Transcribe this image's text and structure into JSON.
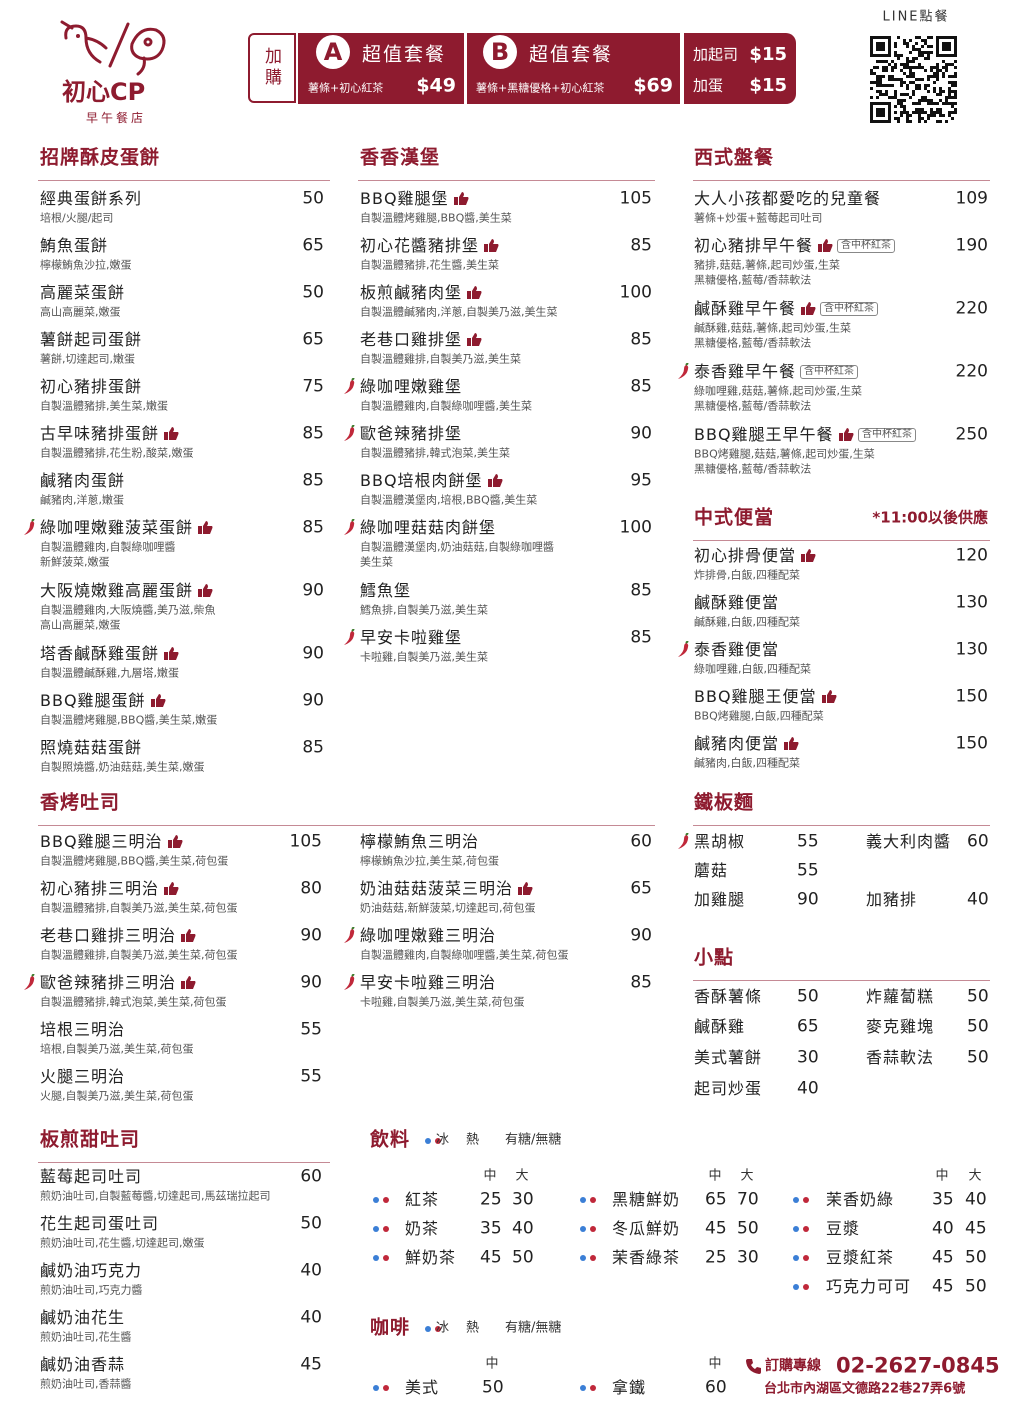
{
  "header": {
    "logo": {
      "name": "初心CP",
      "subtitle": "早午餐店"
    },
    "addon_label": "加購",
    "sets": [
      {
        "letter": "A",
        "title": "超值套餐",
        "contents": "薯條+初心紅茶",
        "price": "$49"
      },
      {
        "letter": "B",
        "title": "超值套餐",
        "contents": "薯條+黑糖優格+初心紅茶",
        "price": "$69"
      }
    ],
    "extras": [
      {
        "name": "加起司",
        "price": "$15"
      },
      {
        "name": "加蛋",
        "price": "$15"
      }
    ],
    "line_order": "LINE點餐"
  },
  "egg_crepes": {
    "title": "招牌酥皮蛋餅",
    "items": [
      {
        "name": "經典蛋餅系列",
        "desc": [
          "培根/火腿/起司"
        ],
        "price": 50
      },
      {
        "name": "鮪魚蛋餅",
        "desc": [
          "檸檬鮪魚沙拉,嫩蛋"
        ],
        "price": 65
      },
      {
        "name": "高麗菜蛋餅",
        "desc": [
          "高山高麗菜,嫩蛋"
        ],
        "price": 50
      },
      {
        "name": "薯餅起司蛋餅",
        "desc": [
          "薯餅,切達起司,嫩蛋"
        ],
        "price": 65
      },
      {
        "name": "初心豬排蛋餅",
        "desc": [
          "自製溫體豬排,美生菜,嫩蛋"
        ],
        "price": 75
      },
      {
        "name": "古早味豬排蛋餅",
        "desc": [
          "自製溫體豬排,花生粉,酸菜,嫩蛋"
        ],
        "price": 85,
        "like": true
      },
      {
        "name": "鹹豬肉蛋餅",
        "desc": [
          "鹹豬肉,洋蔥,嫩蛋"
        ],
        "price": 85
      },
      {
        "name": "綠咖哩嫩雞菠菜蛋餅",
        "desc": [
          "自製溫體雞肉,自製綠咖哩醬",
          "新鮮菠菜,嫩蛋"
        ],
        "price": 85,
        "spicy": true,
        "like": true
      },
      {
        "name": "大阪燒嫩雞高麗蛋餅",
        "desc": [
          "自製溫體雞肉,大阪燒醬,美乃滋,柴魚",
          "高山高麗菜,嫩蛋"
        ],
        "price": 90,
        "like": true
      },
      {
        "name": "塔香鹹酥雞蛋餅",
        "desc": [
          "自製溫體鹹酥雞,九層塔,嫩蛋"
        ],
        "price": 90,
        "like": true
      },
      {
        "name": "BBQ雞腿蛋餅",
        "desc": [
          "自製溫體烤雞腿,BBQ醬,美生菜,嫩蛋"
        ],
        "price": 90,
        "like": true
      },
      {
        "name": "照燒菇菇蛋餅",
        "desc": [
          "自製照燒醬,奶油菇菇,美生菜,嫩蛋"
        ],
        "price": 85
      }
    ]
  },
  "burgers": {
    "title": "香香漢堡",
    "items": [
      {
        "name": "BBQ雞腿堡",
        "desc": [
          "自製溫體烤雞腿,BBQ醬,美生菜"
        ],
        "price": 105,
        "like": true
      },
      {
        "name": "初心花醬豬排堡",
        "desc": [
          "自製溫體豬排,花生醬,美生菜"
        ],
        "price": 85,
        "like": true
      },
      {
        "name": "板煎鹹豬肉堡",
        "desc": [
          "自製溫體鹹豬肉,洋蔥,自製美乃滋,美生菜"
        ],
        "price": 100,
        "like": true
      },
      {
        "name": "老巷口雞排堡",
        "desc": [
          "自製溫體雞排,自製美乃滋,美生菜"
        ],
        "price": 85,
        "like": true
      },
      {
        "name": "綠咖哩嫩雞堡",
        "desc": [
          "自製溫體雞肉,自製綠咖哩醬,美生菜"
        ],
        "price": 85,
        "spicy": true
      },
      {
        "name": "歐爸辣豬排堡",
        "desc": [
          "自製溫體豬排,韓式泡菜,美生菜"
        ],
        "price": 90,
        "spicy": true
      },
      {
        "name": "BBQ培根肉餅堡",
        "desc": [
          "自製溫體漢堡肉,培根,BBQ醬,美生菜"
        ],
        "price": 95,
        "like": true
      },
      {
        "name": "綠咖哩菇菇肉餅堡",
        "desc": [
          "自製溫體漢堡肉,奶油菇菇,自製綠咖哩醬",
          "美生菜"
        ],
        "price": 100,
        "spicy": true
      },
      {
        "name": "鱈魚堡",
        "desc": [
          "鱈魚排,自製美乃滋,美生菜"
        ],
        "price": 85
      },
      {
        "name": "早安卡啦雞堡",
        "desc": [
          "卡啦雞,自製美乃滋,美生菜"
        ],
        "price": 85,
        "spicy": true
      }
    ]
  },
  "western": {
    "title": "西式盤餐",
    "items": [
      {
        "name": "大人小孩都愛吃的兒童餐",
        "desc": [
          "薯條+炒蛋+藍莓起司吐司"
        ],
        "price": 109
      },
      {
        "name": "初心豬排早午餐",
        "desc": [
          "豬排,菇菇,薯條,起司炒蛋,生菜",
          "黑糖優格,藍莓/香蒜軟法"
        ],
        "price": 190,
        "like": true,
        "tag": "含中杯紅茶"
      },
      {
        "name": "鹹酥雞早午餐",
        "desc": [
          "鹹酥雞,菇菇,薯條,起司炒蛋,生菜",
          "黑糖優格,藍莓/香蒜軟法"
        ],
        "price": 220,
        "like": true,
        "tag": "含中杯紅茶"
      },
      {
        "name": "泰香雞早午餐",
        "desc": [
          "綠咖哩雞,菇菇,薯條,起司炒蛋,生菜",
          "黑糖優格,藍莓/香蒜軟法"
        ],
        "price": 220,
        "spicy": true,
        "tag": "含中杯紅茶"
      },
      {
        "name": "BBQ雞腿王早午餐",
        "desc": [
          "BBQ烤雞腿,菇菇,薯條,起司炒蛋,生菜",
          "黑糖優格,藍莓/香蒜軟法"
        ],
        "price": 250,
        "like": true,
        "tag": "含中杯紅茶"
      }
    ]
  },
  "bento": {
    "title": "中式便當",
    "note": "*11:00以後供應",
    "items": [
      {
        "name": "初心排骨便當",
        "desc": [
          "炸排骨,白飯,四種配菜"
        ],
        "price": 120,
        "like": true
      },
      {
        "name": "鹹酥雞便當",
        "desc": [
          "鹹酥雞,白飯,四種配菜"
        ],
        "price": 130
      },
      {
        "name": "泰香雞便當",
        "desc": [
          "綠咖哩雞,白飯,四種配菜"
        ],
        "price": 130,
        "spicy": true
      },
      {
        "name": "BBQ雞腿王便當",
        "desc": [
          "BBQ烤雞腿,白飯,四種配菜"
        ],
        "price": 150,
        "like": true
      },
      {
        "name": "鹹豬肉便當",
        "desc": [
          "鹹豬肉,白飯,四種配菜"
        ],
        "price": 150,
        "like": true
      }
    ]
  },
  "toast": {
    "title": "香烤吐司",
    "columns": [
      [
        {
          "name": "BBQ雞腿三明治",
          "desc": [
            "自製溫體烤雞腿,BBQ醬,美生菜,荷包蛋"
          ],
          "price": 105,
          "like": true
        },
        {
          "name": "初心豬排三明治",
          "desc": [
            "自製溫體豬排,自製美乃滋,美生菜,荷包蛋"
          ],
          "price": 80,
          "like": true
        },
        {
          "name": "老巷口雞排三明治",
          "desc": [
            "自製溫體雞排,自製美乃滋,美生菜,荷包蛋"
          ],
          "price": 90,
          "like": true
        },
        {
          "name": "歐爸辣豬排三明治",
          "desc": [
            "自製溫體豬排,韓式泡菜,美生菜,荷包蛋"
          ],
          "price": 90,
          "spicy": true,
          "like": true
        },
        {
          "name": "培根三明治",
          "desc": [
            "培根,自製美乃滋,美生菜,荷包蛋"
          ],
          "price": 55
        },
        {
          "name": "火腿三明治",
          "desc": [
            "火腿,自製美乃滋,美生菜,荷包蛋"
          ],
          "price": 55
        }
      ],
      [
        {
          "name": "檸檬鮪魚三明治",
          "desc": [
            "檸檬鮪魚沙拉,美生菜,荷包蛋"
          ],
          "price": 60
        },
        {
          "name": "奶油菇菇菠菜三明治",
          "desc": [
            "奶油菇菇,新鮮菠菜,切達起司,荷包蛋"
          ],
          "price": 65,
          "like": true
        },
        {
          "name": "綠咖哩嫩雞三明治",
          "desc": [
            "自製溫體雞肉,自製綠咖哩醬,美生菜,荷包蛋"
          ],
          "price": 90,
          "spicy": true
        },
        {
          "name": "早安卡啦雞三明治",
          "desc": [
            "卡啦雞,自製美乃滋,美生菜,荷包蛋"
          ],
          "price": 85,
          "spicy": true
        }
      ]
    ]
  },
  "noodles": {
    "title": "鐵板麵",
    "rows": [
      [
        {
          "name": "黑胡椒",
          "price": 55,
          "spicy": true
        },
        {
          "name": "義大利肉醬",
          "price": 60
        }
      ],
      [
        {
          "name": "蘑菇",
          "price": 55
        }
      ],
      [
        {
          "name": "加雞腿",
          "price": 90
        },
        {
          "name": "加豬排",
          "price": 40
        }
      ]
    ]
  },
  "snacks": {
    "title": "小點",
    "rows": [
      [
        {
          "name": "香酥薯條",
          "price": 50
        },
        {
          "name": "炸蘿蔔糕",
          "price": 50
        }
      ],
      [
        {
          "name": "鹹酥雞",
          "price": 65
        },
        {
          "name": "麥克雞塊",
          "price": 50
        }
      ],
      [
        {
          "name": "美式薯餅",
          "price": 30
        },
        {
          "name": "香蒜軟法",
          "price": 50
        }
      ],
      [
        {
          "name": "起司炒蛋",
          "price": 40
        }
      ]
    ]
  },
  "sweet_toast": {
    "title": "板煎甜吐司",
    "items": [
      {
        "name": "藍莓起司吐司",
        "desc": [
          "煎奶油吐司,自製藍莓醬,切達起司,馬茲瑞拉起司"
        ],
        "price": 60
      },
      {
        "name": "花生起司蛋吐司",
        "desc": [
          "煎奶油吐司,花生醬,切達起司,嫩蛋"
        ],
        "price": 50
      },
      {
        "name": "鹹奶油巧克力",
        "desc": [
          "煎奶油吐司,巧克力醬"
        ],
        "price": 40
      },
      {
        "name": "鹹奶油花生",
        "desc": [
          "煎奶油吐司,花生醬"
        ],
        "price": 40
      },
      {
        "name": "鹹奶油香蒜",
        "desc": [
          "煎奶油吐司,香蒜醬"
        ],
        "price": 45
      }
    ]
  },
  "drinks": {
    "title": "飲料",
    "legend": [
      "冰",
      "熱"
    ],
    "sugar": "有糖/無糖",
    "columns": [
      {
        "sizes": [
          "中",
          "大"
        ],
        "items": [
          {
            "name": "紅茶",
            "prices": [
              25,
              30
            ]
          },
          {
            "name": "奶茶",
            "prices": [
              35,
              40
            ]
          },
          {
            "name": "鮮奶茶",
            "prices": [
              45,
              50
            ]
          }
        ]
      },
      {
        "sizes": [
          "中",
          "大"
        ],
        "items": [
          {
            "name": "黑糖鮮奶",
            "prices": [
              65,
              70
            ]
          },
          {
            "name": "冬瓜鮮奶",
            "prices": [
              45,
              50
            ]
          },
          {
            "name": "茉香綠茶",
            "prices": [
              25,
              30
            ]
          }
        ]
      },
      {
        "sizes": [
          "中",
          "大"
        ],
        "items": [
          {
            "name": "茉香奶綠",
            "prices": [
              35,
              40
            ]
          },
          {
            "name": "豆漿",
            "prices": [
              40,
              45
            ]
          },
          {
            "name": "豆漿紅茶",
            "prices": [
              45,
              50
            ]
          },
          {
            "name": "巧克力可可",
            "prices": [
              45,
              50
            ]
          }
        ]
      }
    ]
  },
  "coffee": {
    "title": "咖啡",
    "legend": [
      "冰",
      "熱"
    ],
    "sugar": "有糖/無糖",
    "columns": [
      {
        "sizes": [
          "中"
        ],
        "items": [
          {
            "name": "美式",
            "prices": [
              50
            ]
          }
        ]
      },
      {
        "sizes": [
          "中"
        ],
        "items": [
          {
            "name": "拿鐵",
            "prices": [
              60
            ]
          }
        ]
      }
    ]
  },
  "footer": {
    "phone_label": "訂購專線",
    "phone": "02-2627-0845",
    "address": "台北市內湖區文德路22巷27弄6號"
  }
}
